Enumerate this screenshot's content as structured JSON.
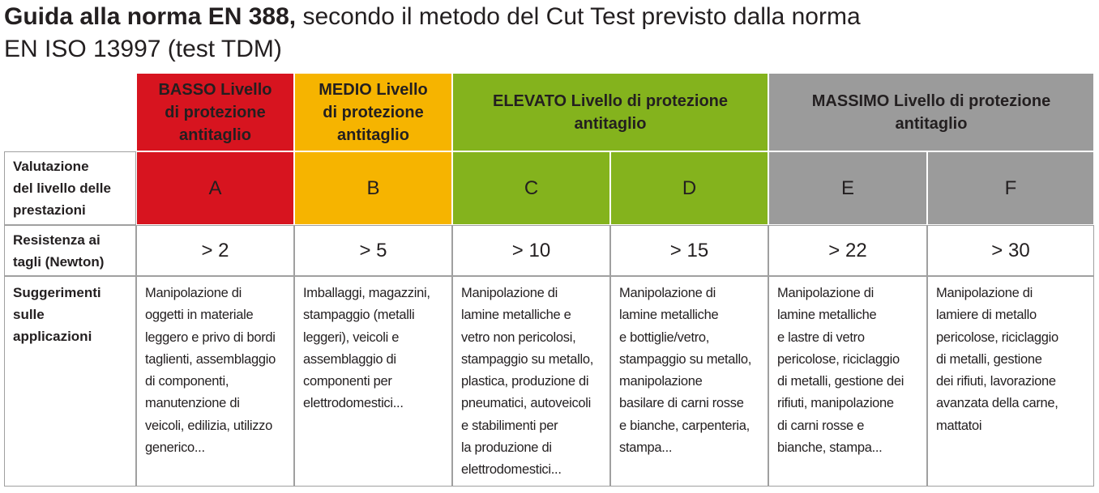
{
  "header": {
    "title_bold": "Guida alla norma EN 388,",
    "title_rest": [
      "secondo il metodo del Cut Test previsto dalla norma",
      "EN ISO 13997 (test TDM)"
    ]
  },
  "table": {
    "groups": [
      {
        "lines": [
          "BASSO Livello",
          "di protezione",
          "antitaglio"
        ],
        "color": "#d7141f"
      },
      {
        "lines": [
          "MEDIO Livello",
          "di protezione",
          "antitaglio"
        ],
        "color": "#f6b400"
      },
      {
        "lines": [
          "ELEVATO Livello di protezione",
          "antitaglio"
        ],
        "color": "#84b31d"
      },
      {
        "lines": [
          "MASSIMO Livello di protezione",
          "antitaglio"
        ],
        "color": "#9b9b9b"
      }
    ],
    "row_labels": [
      [
        "Valutazione",
        "del livello delle",
        "prestazioni"
      ],
      [
        "Resistenza ai",
        "tagli (Newton)"
      ],
      [
        "Suggerimenti",
        "sulle",
        "applicazioni"
      ]
    ],
    "levels": [
      {
        "letter": "A",
        "resistance": "> 2",
        "applications": [
          "Manipolazione di",
          "oggetti in materiale",
          "leggero e privo di bordi",
          "taglienti, assemblaggio",
          "di componenti,",
          "manutenzione di",
          "veicoli, edilizia, utilizzo",
          "generico..."
        ]
      },
      {
        "letter": "B",
        "resistance": "> 5",
        "applications": [
          "Imballaggi, magazzini,",
          "stampaggio (metalli",
          "leggeri), veicoli e",
          "assemblaggio di",
          "componenti per",
          "elettrodomestici..."
        ]
      },
      {
        "letter": "C",
        "resistance": "> 10",
        "applications": [
          "Manipolazione di",
          "lamine metalliche e",
          "vetro non pericolosi,",
          "stampaggio su metallo,",
          "plastica, produzione di",
          "pneumatici, autoveicoli",
          "e stabilimenti per",
          "la produzione di",
          "elettrodomestici..."
        ]
      },
      {
        "letter": "D",
        "resistance": "> 15",
        "applications": [
          "Manipolazione di",
          "lamine metalliche",
          "e bottiglie/vetro,",
          "stampaggio su metallo,",
          "manipolazione",
          "basilare di carni rosse",
          "e bianche, carpenteria,",
          "stampa..."
        ]
      },
      {
        "letter": "E",
        "resistance": "> 22",
        "applications": [
          "Manipolazione di",
          "lamine metalliche",
          "e lastre di vetro",
          "pericolose, riciclaggio",
          "di metalli, gestione dei",
          "rifiuti, manipolazione",
          "di carni rosse e",
          "bianche, stampa..."
        ]
      },
      {
        "letter": "F",
        "resistance": "> 30",
        "applications": [
          "Manipolazione di",
          "lamiere di metallo",
          "pericolose, riciclaggio",
          "di metalli, gestione",
          "dei rifiuti, lavorazione",
          "avanzata della carne,",
          "mattatoi"
        ]
      }
    ]
  }
}
